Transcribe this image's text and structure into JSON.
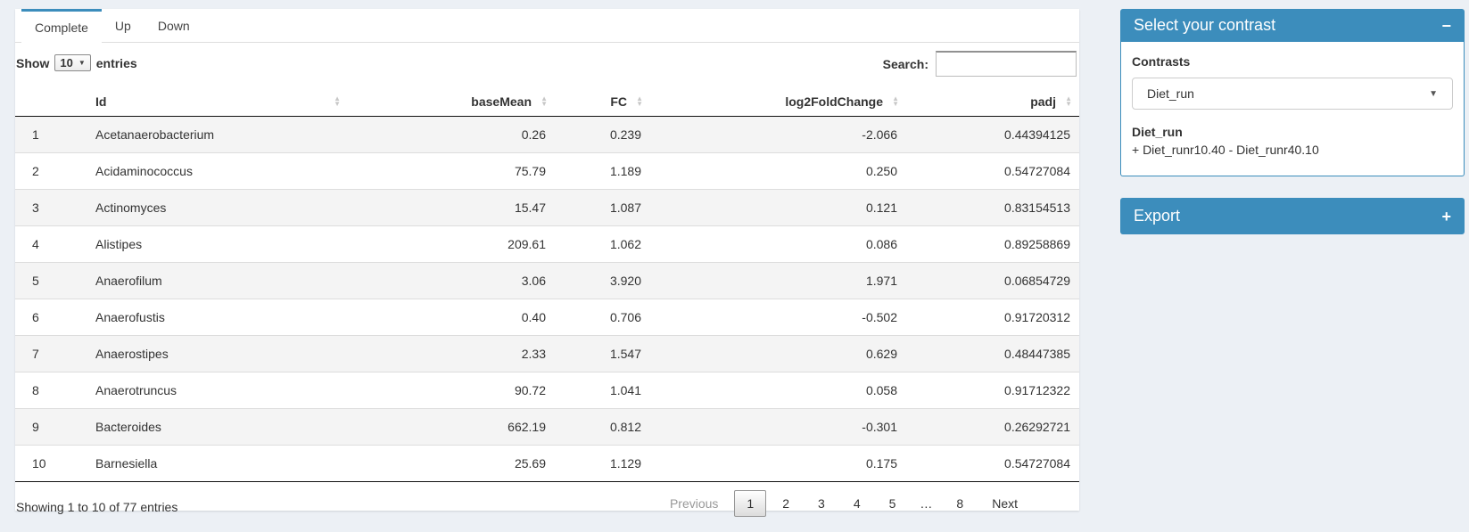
{
  "tabs": [
    {
      "label": "Complete",
      "active": true
    },
    {
      "label": "Up",
      "active": false
    },
    {
      "label": "Down",
      "active": false
    }
  ],
  "toolbar": {
    "show_label": "Show",
    "page_length": "10",
    "entries_label": "entries",
    "search_label": "Search:",
    "search_value": ""
  },
  "table": {
    "columns": [
      "",
      "Id",
      "baseMean",
      "FC",
      "log2FoldChange",
      "padj"
    ],
    "rows": [
      [
        "1",
        "Acetanaerobacterium",
        "0.26",
        "0.239",
        "-2.066",
        "0.44394125"
      ],
      [
        "2",
        "Acidaminococcus",
        "75.79",
        "1.189",
        "0.250",
        "0.54727084"
      ],
      [
        "3",
        "Actinomyces",
        "15.47",
        "1.087",
        "0.121",
        "0.83154513"
      ],
      [
        "4",
        "Alistipes",
        "209.61",
        "1.062",
        "0.086",
        "0.89258869"
      ],
      [
        "5",
        "Anaerofilum",
        "3.06",
        "3.920",
        "1.971",
        "0.06854729"
      ],
      [
        "6",
        "Anaerofustis",
        "0.40",
        "0.706",
        "-0.502",
        "0.91720312"
      ],
      [
        "7",
        "Anaerostipes",
        "2.33",
        "1.547",
        "0.629",
        "0.48447385"
      ],
      [
        "8",
        "Anaerotruncus",
        "90.72",
        "1.041",
        "0.058",
        "0.91712322"
      ],
      [
        "9",
        "Bacteroides",
        "662.19",
        "0.812",
        "-0.301",
        "0.26292721"
      ],
      [
        "10",
        "Barnesiella",
        "25.69",
        "1.129",
        "0.175",
        "0.54727084"
      ]
    ]
  },
  "footer": {
    "info": "Showing 1 to 10 of 77 entries",
    "pagination": {
      "previous": "Previous",
      "pages": [
        "1",
        "2",
        "3",
        "4",
        "5",
        "…",
        "8"
      ],
      "current_page": "1",
      "next": "Next"
    }
  },
  "contrast_panel": {
    "title": "Select your contrast",
    "collapse_icon": "−",
    "contrasts_label": "Contrasts",
    "selected_contrast": "Diet_run",
    "contrast_name": "Diet_run",
    "contrast_formula": "+ Diet_runr10.40 - Diet_runr40.10"
  },
  "export_panel": {
    "title": "Export",
    "expand_icon": "+"
  },
  "colors": {
    "accent": "#3c8dbc",
    "page_bg": "#ecf0f5"
  }
}
